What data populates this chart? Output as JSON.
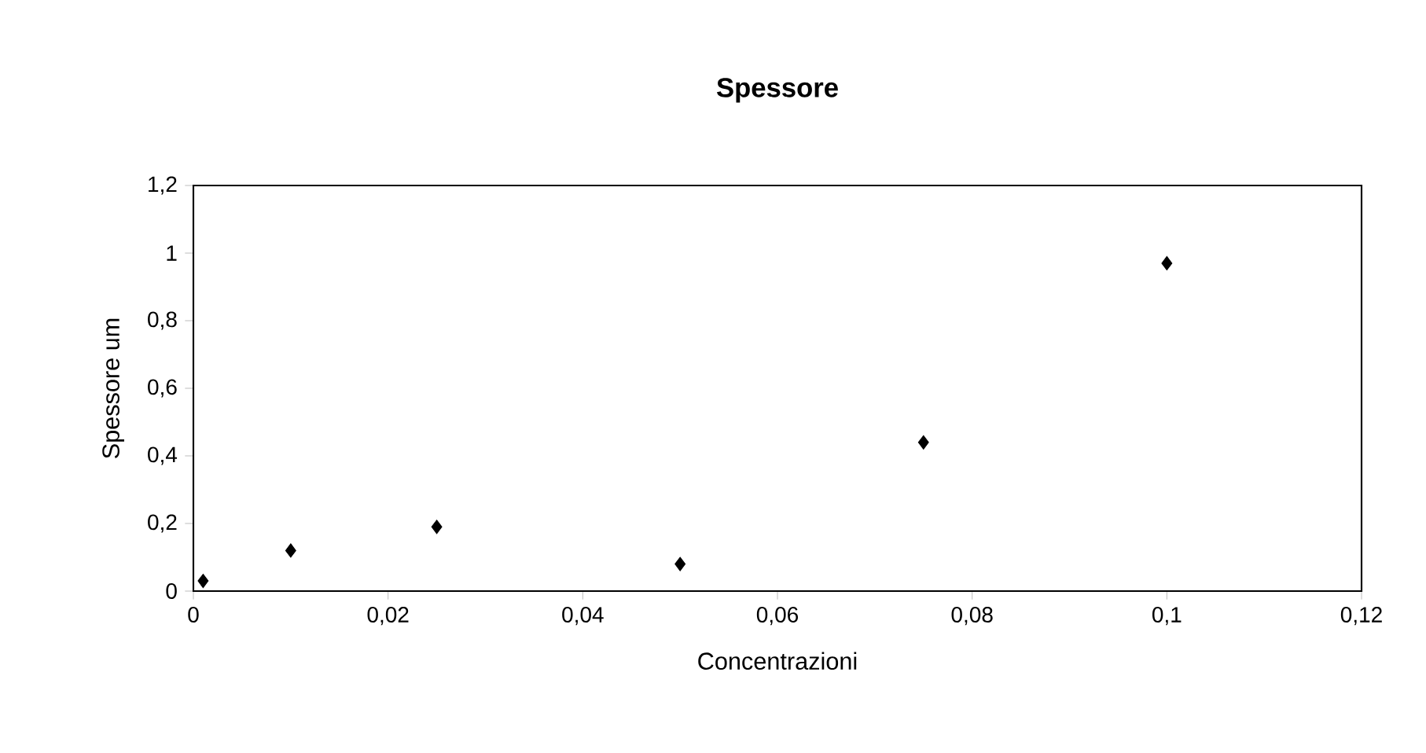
{
  "chart_data": {
    "type": "scatter",
    "title": "Spessore",
    "xlabel": "Concentrazioni",
    "ylabel": "Spessore um",
    "x": [
      0.001,
      0.01,
      0.025,
      0.05,
      0.075,
      0.1
    ],
    "values": [
      0.03,
      0.12,
      0.19,
      0.08,
      0.44,
      0.97
    ],
    "color": "#000000",
    "marker": "diamond",
    "xlim": [
      0,
      0.12
    ],
    "ylim": [
      0,
      1.2
    ],
    "xticks": [
      0,
      {
        "value": 0.02,
        "label": "0,02"
      },
      {
        "value": 0.04,
        "label": "0,04"
      },
      {
        "value": 0.06,
        "label": "0,06"
      },
      {
        "value": 0.08,
        "label": "0,08"
      },
      {
        "value": 0.1,
        "label": "0,1"
      },
      {
        "value": 0.12,
        "label": "0,12"
      }
    ],
    "yticks": [
      0,
      {
        "value": 0.2,
        "label": "0,2"
      },
      {
        "value": 0.4,
        "label": "0,4"
      },
      {
        "value": 0.6,
        "label": "0,6"
      },
      {
        "value": 0.8,
        "label": "0,8"
      },
      1,
      {
        "value": 1.2,
        "label": "1,2"
      }
    ]
  }
}
